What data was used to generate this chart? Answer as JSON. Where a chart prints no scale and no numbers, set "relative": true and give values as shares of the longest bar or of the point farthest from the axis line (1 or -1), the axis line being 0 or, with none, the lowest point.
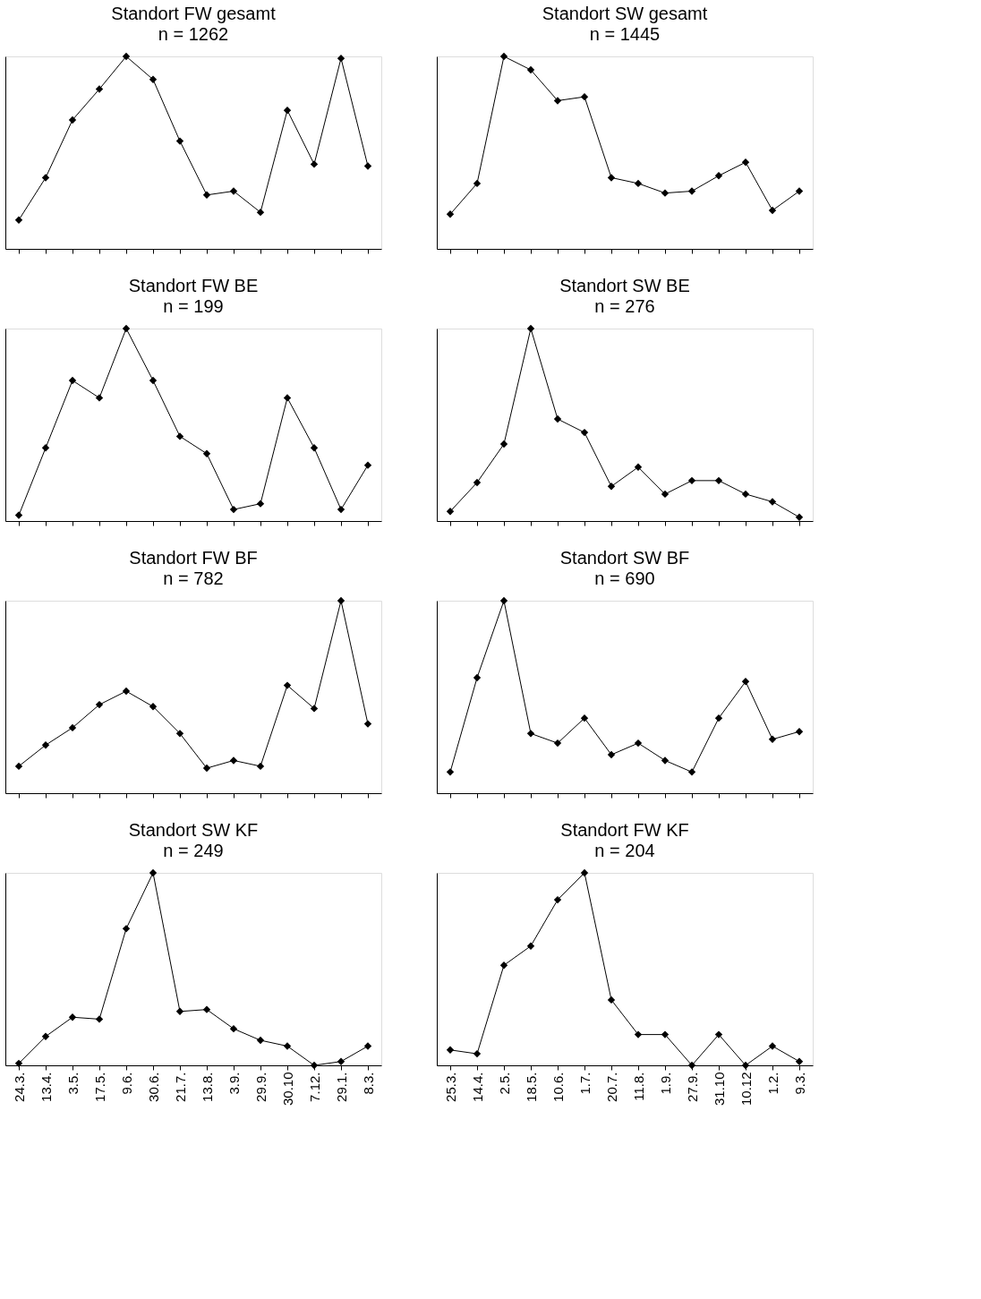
{
  "chart_data": [
    {
      "type": "line",
      "title": "Standort FW gesamt",
      "subtitle": "n = 1262",
      "relative": true,
      "marker": "diamond",
      "tick_labels": false,
      "categories": [
        "24.3.",
        "13.4.",
        "3.5.",
        "17.5.",
        "9.6.",
        "30.6.",
        "21.7.",
        "13.8.",
        "3.9.",
        "29.9.",
        "30.10",
        "7.12.",
        "29.1.",
        "8.3."
      ],
      "series": [
        {
          "color": "#000000",
          "values": [
            0.15,
            0.37,
            0.67,
            0.83,
            1,
            0.88,
            0.56,
            0.28,
            0.3,
            0.19,
            0.72,
            0.44,
            0.99,
            0.43
          ]
        }
      ]
    },
    {
      "type": "line",
      "title": "Standort SW gesamt",
      "subtitle": "n = 1445",
      "relative": true,
      "marker": "diamond",
      "tick_labels": false,
      "categories": [
        "25.3.",
        "14.4.",
        "2.5.",
        "18.5.",
        "10.6.",
        "1.7.",
        "20.7.",
        "11.8.",
        "1.9.",
        "27.9.",
        "31.10",
        "10.12",
        "1.2.",
        "9.3."
      ],
      "series": [
        {
          "color": "#000000",
          "values": [
            0.18,
            0.34,
            1,
            0.93,
            0.77,
            0.79,
            0.37,
            0.34,
            0.29,
            0.3,
            0.38,
            0.45,
            0.2,
            0.3
          ]
        }
      ]
    },
    {
      "type": "line",
      "title": "Standort FW BE",
      "subtitle": "n = 199",
      "relative": true,
      "marker": "diamond",
      "tick_labels": false,
      "categories": [
        "24.3.",
        "13.4.",
        "3.5.",
        "17.5.",
        "9.6.",
        "30.6.",
        "21.7.",
        "13.8.",
        "3.9.",
        "29.9.",
        "30.10",
        "7.12.",
        "29.1.",
        "8.3."
      ],
      "series": [
        {
          "color": "#000000",
          "values": [
            0.03,
            0.38,
            0.73,
            0.64,
            1,
            0.73,
            0.44,
            0.35,
            0.06,
            0.09,
            0.64,
            0.38,
            0.06,
            0.29
          ]
        }
      ]
    },
    {
      "type": "line",
      "title": "Standort SW BE",
      "subtitle": "n = 276",
      "relative": true,
      "marker": "diamond",
      "tick_labels": false,
      "categories": [
        "25.3.",
        "14.4.",
        "2.5.",
        "18.5.",
        "10.6.",
        "1.7.",
        "20.7.",
        "11.8.",
        "1.9.",
        "27.9.",
        "31.10",
        "10.12",
        "1.2.",
        "9.3."
      ],
      "series": [
        {
          "color": "#000000",
          "values": [
            0.05,
            0.2,
            0.4,
            1,
            0.53,
            0.46,
            0.18,
            0.28,
            0.14,
            0.21,
            0.21,
            0.14,
            0.1,
            0.02
          ]
        }
      ]
    },
    {
      "type": "line",
      "title": "Standort FW BF",
      "subtitle": "n = 782",
      "relative": true,
      "marker": "diamond",
      "tick_labels": false,
      "categories": [
        "24.3.",
        "13.4.",
        "3.5.",
        "17.5.",
        "9.6.",
        "30.6.",
        "21.7.",
        "13.8.",
        "3.9.",
        "29.9.",
        "30.10",
        "7.12.",
        "29.1.",
        "8.3."
      ],
      "series": [
        {
          "color": "#000000",
          "values": [
            0.14,
            0.25,
            0.34,
            0.46,
            0.53,
            0.45,
            0.31,
            0.13,
            0.17,
            0.14,
            0.56,
            0.44,
            1,
            0.36
          ]
        }
      ]
    },
    {
      "type": "line",
      "title": "Standort SW BF",
      "subtitle": "n = 690",
      "relative": true,
      "marker": "diamond",
      "tick_labels": false,
      "categories": [
        "25.3.",
        "14.4.",
        "2.5.",
        "18.5.",
        "10.6.",
        "1.7.",
        "20.7.",
        "11.8.",
        "1.9.",
        "27.9.",
        "31.10",
        "10.12",
        "1.2.",
        "9.3."
      ],
      "series": [
        {
          "color": "#000000",
          "values": [
            0.11,
            0.6,
            1,
            0.31,
            0.26,
            0.39,
            0.2,
            0.26,
            0.17,
            0.11,
            0.39,
            0.58,
            0.28,
            0.32
          ]
        }
      ]
    },
    {
      "type": "line",
      "title": "Standort SW  KF",
      "subtitle": "n = 249",
      "relative": true,
      "marker": "diamond",
      "tick_labels": "x",
      "categories": [
        "24.3.",
        "13.4.",
        "3.5.",
        "17.5.",
        "9.6.",
        "30.6.",
        "21.7.",
        "13.8.",
        "3.9.",
        "29.9.",
        "30.10",
        "7.12.",
        "29.1.",
        "8.3."
      ],
      "series": [
        {
          "color": "#000000",
          "values": [
            0.01,
            0.15,
            0.25,
            0.24,
            0.71,
            1,
            0.28,
            0.29,
            0.19,
            0.13,
            0.1,
            0,
            0.02,
            0.1
          ]
        }
      ]
    },
    {
      "type": "line",
      "title": "Standort FW  KF",
      "subtitle": "n = 204",
      "relative": true,
      "marker": "diamond",
      "tick_labels": "x",
      "categories": [
        "25.3.",
        "14.4.",
        "2.5.",
        "18.5.",
        "10.6.",
        "1.7.",
        "20.7.",
        "11.8.",
        "1.9.",
        "27.9.",
        "31.10",
        "10.12",
        "1.2.",
        "9.3."
      ],
      "series": [
        {
          "color": "#000000",
          "values": [
            0.08,
            0.06,
            0.52,
            0.62,
            0.86,
            1,
            0.34,
            0.16,
            0.16,
            0,
            0.16,
            0,
            0.1,
            0.02
          ]
        }
      ]
    }
  ]
}
